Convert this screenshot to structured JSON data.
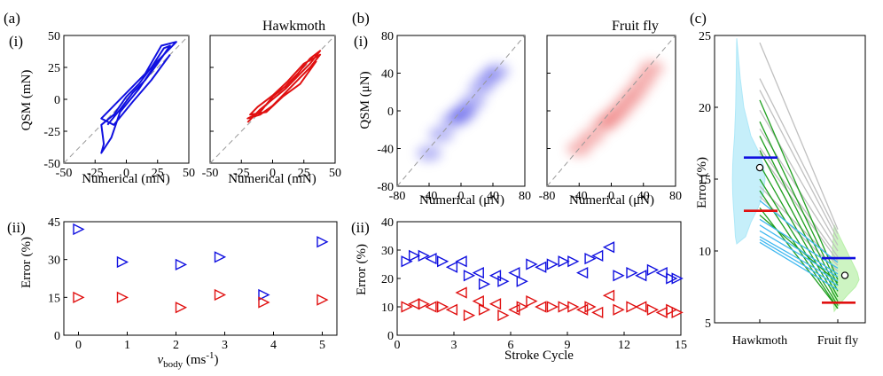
{
  "labels": {
    "panel_a": "(a)",
    "panel_b": "(b)",
    "panel_c": "(c)",
    "sub_i_a": "(i)",
    "sub_i_b": "(i)",
    "sub_ii_a": "(ii)",
    "sub_ii_b": "(ii)",
    "hawkmoth": "Hawkmoth",
    "fruitfly": "Fruit fly",
    "qsm_mN": "QSM (mN)",
    "qsm_uN": "QSM (μN)",
    "num_mN": "Numerical (mN)",
    "num_uN": "Numerical (μN)",
    "error_pct": "Error (%)",
    "vbody": "v",
    "vbody_sub": "body",
    "vbody_unit": " (ms",
    "vbody_exp": "-1",
    "vbody_close": ")",
    "stroke_cycle": "Stroke Cycle"
  },
  "colors": {
    "blue": "#1010e0",
    "red": "#e01010",
    "light_blue": "#40b8f0",
    "green": "#20a020",
    "gray": "#c0c0c0",
    "violin_blue": "#aee8f8",
    "violin_green": "#b8f0a8"
  },
  "chart_data": [
    {
      "id": "a_i",
      "type": "line",
      "title": "Hawkmoth",
      "xlabel": "Numerical (mN)",
      "ylabel": "QSM (mN)",
      "xlim": [
        -50,
        50
      ],
      "ylim": [
        -50,
        50
      ],
      "xticks": [
        "-50",
        "-25",
        "0",
        "25",
        "50"
      ],
      "yticks": [
        "-50",
        "-25",
        "0",
        "25",
        "50"
      ],
      "series": [
        {
          "name": "blue",
          "values": [
            [
              -15,
              -20
            ],
            [
              -5,
              -8
            ],
            [
              5,
              5
            ],
            [
              15,
              15
            ],
            [
              25,
              28
            ],
            [
              35,
              42
            ],
            [
              30,
              40
            ],
            [
              20,
              25
            ],
            [
              10,
              12
            ],
            [
              0,
              2
            ],
            [
              -10,
              -12
            ],
            [
              -20,
              -20
            ],
            [
              -18,
              -35
            ],
            [
              -20,
              -42
            ],
            [
              -12,
              -30
            ],
            [
              -5,
              -10
            ],
            [
              10,
              8
            ],
            [
              25,
              30
            ],
            [
              40,
              45
            ],
            [
              28,
              42
            ],
            [
              15,
              20
            ],
            [
              0,
              5
            ],
            [
              -10,
              -5
            ],
            [
              -20,
              -15
            ],
            [
              -10,
              -20
            ],
            [
              5,
              -2
            ],
            [
              20,
              15
            ],
            [
              35,
              35
            ]
          ]
        },
        {
          "name": "red",
          "values": [
            [
              -20,
              -18
            ],
            [
              -10,
              -8
            ],
            [
              0,
              0
            ],
            [
              10,
              8
            ],
            [
              20,
              18
            ],
            [
              30,
              28
            ],
            [
              38,
              38
            ],
            [
              30,
              32
            ],
            [
              20,
              20
            ],
            [
              10,
              10
            ],
            [
              0,
              2
            ],
            [
              -10,
              -10
            ],
            [
              -20,
              -15
            ],
            [
              -10,
              -12
            ],
            [
              0,
              -5
            ],
            [
              10,
              5
            ],
            [
              20,
              15
            ],
            [
              30,
              25
            ],
            [
              38,
              35
            ],
            [
              25,
              28
            ],
            [
              12,
              14
            ],
            [
              0,
              3
            ],
            [
              -12,
              -6
            ],
            [
              -18,
              -12
            ],
            [
              -5,
              -10
            ],
            [
              8,
              2
            ],
            [
              22,
              12
            ],
            [
              35,
              30
            ]
          ]
        }
      ]
    },
    {
      "id": "b_i",
      "type": "heatmap",
      "title": "Fruit fly",
      "xlabel": "Numerical (μN)",
      "ylabel": "QSM (μN)",
      "xlim": [
        -80,
        80
      ],
      "ylim": [
        -80,
        80
      ],
      "xticks": [
        "-80",
        "-40",
        "0",
        "40",
        "80"
      ],
      "yticks": [
        "-80",
        "-40",
        "0",
        "40",
        "80"
      ],
      "series": [
        {
          "name": "blue",
          "values": [
            [
              -40,
              -45
            ],
            [
              -25,
              -25
            ],
            [
              -10,
              -10
            ],
            [
              0,
              -5
            ],
            [
              5,
              0
            ],
            [
              15,
              10
            ],
            [
              25,
              25
            ],
            [
              35,
              35
            ],
            [
              45,
              42
            ]
          ]
        },
        {
          "name": "red",
          "values": [
            [
              -40,
              -40
            ],
            [
              -25,
              -28
            ],
            [
              -10,
              -15
            ],
            [
              0,
              -8
            ],
            [
              10,
              0
            ],
            [
              20,
              10
            ],
            [
              30,
              20
            ],
            [
              40,
              32
            ],
            [
              50,
              45
            ]
          ]
        }
      ]
    },
    {
      "id": "a_ii",
      "type": "scatter",
      "xlabel": "v_body (ms-1)",
      "ylabel": "Error (%)",
      "xlim": [
        -0.3,
        5.3
      ],
      "ylim": [
        0,
        45
      ],
      "xticks": [
        "0",
        "1",
        "2",
        "3",
        "4",
        "5"
      ],
      "yticks": [
        "0",
        "15",
        "30",
        "45"
      ],
      "series": [
        {
          "name": "blue",
          "x": [
            0,
            0.9,
            2.1,
            2.9,
            3.8,
            5.0
          ],
          "values": [
            42,
            29,
            28,
            31,
            16,
            37
          ]
        },
        {
          "name": "red",
          "x": [
            0,
            0.9,
            2.1,
            2.9,
            3.8,
            5.0
          ],
          "values": [
            15,
            15,
            11,
            16,
            13,
            14
          ]
        }
      ]
    },
    {
      "id": "b_ii",
      "type": "scatter",
      "xlabel": "Stroke Cycle",
      "ylabel": "Error (%)",
      "xlim": [
        0,
        15
      ],
      "ylim": [
        0,
        40
      ],
      "xticks": [
        "0",
        "3",
        "6",
        "9",
        "12",
        "15"
      ],
      "yticks": [
        "0",
        "10",
        "20",
        "30",
        "40"
      ],
      "series": [
        {
          "name": "blue",
          "points": [
            [
              0.5,
              26,
              "r"
            ],
            [
              0.9,
              28,
              "r"
            ],
            [
              1.4,
              28,
              "r"
            ],
            [
              1.8,
              27,
              "l"
            ],
            [
              2.4,
              26,
              "r"
            ],
            [
              2.9,
              24,
              "l"
            ],
            [
              3.4,
              26,
              "l"
            ],
            [
              3.8,
              21,
              "r"
            ],
            [
              4.3,
              22,
              "l"
            ],
            [
              4.6,
              18,
              "r"
            ],
            [
              5.2,
              21,
              "l"
            ],
            [
              5.6,
              19,
              "r"
            ],
            [
              6.2,
              22,
              "l"
            ],
            [
              6.6,
              19,
              "r"
            ],
            [
              7.1,
              25,
              "r"
            ],
            [
              7.6,
              24,
              "l"
            ],
            [
              8.2,
              25,
              "r"
            ],
            [
              8.8,
              26,
              "r"
            ],
            [
              9.3,
              26,
              "r"
            ],
            [
              9.8,
              22,
              "l"
            ],
            [
              10.2,
              27,
              "r"
            ],
            [
              10.6,
              28,
              "l"
            ],
            [
              11.2,
              31,
              "l"
            ],
            [
              11.7,
              21,
              "r"
            ],
            [
              12.4,
              22,
              "r"
            ],
            [
              12.9,
              21,
              "l"
            ],
            [
              13.5,
              23,
              "r"
            ],
            [
              14.0,
              22,
              "l"
            ],
            [
              14.5,
              20,
              "r"
            ],
            [
              14.8,
              20,
              "r"
            ]
          ]
        },
        {
          "name": "red",
          "points": [
            [
              0.5,
              10,
              "r"
            ],
            [
              0.9,
              11,
              "l"
            ],
            [
              1.4,
              11,
              "r"
            ],
            [
              1.8,
              10,
              "l"
            ],
            [
              2.4,
              10,
              "r"
            ],
            [
              2.9,
              9,
              "l"
            ],
            [
              3.4,
              15,
              "l"
            ],
            [
              3.8,
              7,
              "r"
            ],
            [
              4.3,
              12,
              "l"
            ],
            [
              4.6,
              9,
              "r"
            ],
            [
              5.2,
              11,
              "l"
            ],
            [
              5.6,
              7,
              "r"
            ],
            [
              6.2,
              9,
              "l"
            ],
            [
              6.6,
              10,
              "r"
            ],
            [
              7.1,
              12,
              "r"
            ],
            [
              7.6,
              10,
              "l"
            ],
            [
              8.2,
              10,
              "r"
            ],
            [
              8.8,
              10,
              "r"
            ],
            [
              9.3,
              10,
              "r"
            ],
            [
              9.8,
              9,
              "l"
            ],
            [
              10.2,
              10,
              "r"
            ],
            [
              10.6,
              8,
              "l"
            ],
            [
              11.2,
              14,
              "l"
            ],
            [
              11.7,
              9,
              "r"
            ],
            [
              12.4,
              10,
              "r"
            ],
            [
              12.9,
              10,
              "l"
            ],
            [
              13.5,
              9,
              "r"
            ],
            [
              14.0,
              8,
              "l"
            ],
            [
              14.5,
              9,
              "r"
            ],
            [
              14.8,
              8,
              "r"
            ]
          ]
        }
      ]
    },
    {
      "id": "c",
      "type": "scatter",
      "ylabel": "Error (%)",
      "ylim": [
        5,
        25
      ],
      "categories": [
        "Hawkmoth",
        "Fruit fly"
      ],
      "yticks": [
        "5",
        "10",
        "15",
        "20",
        "25"
      ],
      "blue_levels": [
        16.5,
        9.5
      ],
      "red_levels": [
        12.8,
        6.4
      ],
      "means": [
        15.8,
        8.3
      ],
      "pairs": [
        {
          "c": "gray",
          "v": [
            24.5,
            11.5
          ]
        },
        {
          "c": "gray",
          "v": [
            22.0,
            11.2
          ]
        },
        {
          "c": "gray",
          "v": [
            21.2,
            10.8
          ]
        },
        {
          "c": "gray",
          "v": [
            19.8,
            10.4
          ]
        },
        {
          "c": "gray",
          "v": [
            18.5,
            10.0
          ]
        },
        {
          "c": "gray",
          "v": [
            17.2,
            9.6
          ]
        },
        {
          "c": "gray",
          "v": [
            16.8,
            9.3
          ]
        },
        {
          "c": "gray",
          "v": [
            14.5,
            9.0
          ]
        },
        {
          "c": "gray",
          "v": [
            13.8,
            8.6
          ]
        },
        {
          "c": "green",
          "v": [
            20.5,
            8.0
          ]
        },
        {
          "c": "green",
          "v": [
            19.0,
            7.6
          ]
        },
        {
          "c": "green",
          "v": [
            18.0,
            7.2
          ]
        },
        {
          "c": "green",
          "v": [
            17.0,
            6.8
          ]
        },
        {
          "c": "green",
          "v": [
            16.0,
            6.5
          ]
        },
        {
          "c": "green",
          "v": [
            15.0,
            6.2
          ]
        },
        {
          "c": "green",
          "v": [
            14.2,
            6.0
          ]
        },
        {
          "c": "green",
          "v": [
            13.0,
            6.0
          ]
        },
        {
          "c": "green",
          "v": [
            12.5,
            7.8
          ]
        },
        {
          "c": "light_blue",
          "v": [
            13.5,
            9.2
          ]
        },
        {
          "c": "light_blue",
          "v": [
            12.2,
            8.8
          ]
        },
        {
          "c": "light_blue",
          "v": [
            11.8,
            8.4
          ]
        },
        {
          "c": "light_blue",
          "v": [
            11.4,
            8.2
          ]
        },
        {
          "c": "light_blue",
          "v": [
            11.0,
            7.9
          ]
        },
        {
          "c": "light_blue",
          "v": [
            10.8,
            7.6
          ]
        },
        {
          "c": "light_blue",
          "v": [
            10.6,
            7.3
          ]
        }
      ]
    }
  ]
}
